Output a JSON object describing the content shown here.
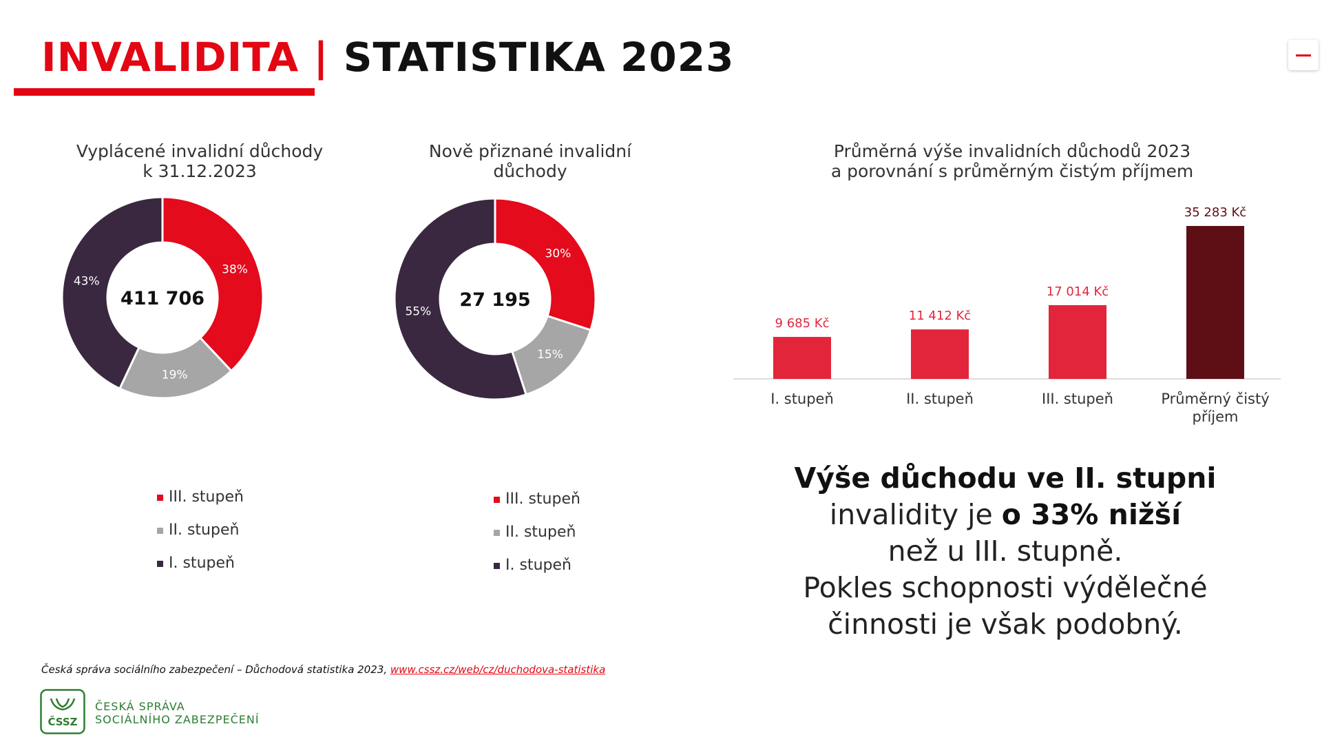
{
  "header": {
    "title_part1": "INVALIDITA",
    "title_separator": " | ",
    "title_part2": "STATISTIKA 2023"
  },
  "colors": {
    "accent_red": "#e30613",
    "slice_red": "#e30b1c",
    "slice_gray": "#a6a6a6",
    "slice_dark": "#3a2840",
    "bar_red": "#e3253b",
    "bar_dark": "#5e0f16"
  },
  "chart_data": [
    {
      "type": "pie",
      "title_line1": "Vyplácené invalidní důchody",
      "title_line2": "k 31.12.2023",
      "center_value": "411 706",
      "slices": [
        {
          "name": "III. stupeň",
          "value": 38,
          "label": "38%"
        },
        {
          "name": "II. stupeň",
          "value": 19,
          "label": "19%"
        },
        {
          "name": "I. stupeň",
          "value": 43,
          "label": "43%"
        }
      ],
      "legend": [
        "III. stupeň",
        "II. stupeň",
        "I. stupeň"
      ]
    },
    {
      "type": "pie",
      "title_line1": "Nově přiznané invalidní",
      "title_line2": "důchody",
      "center_value": "27 195",
      "slices": [
        {
          "name": "III. stupeň",
          "value": 30,
          "label": "30%"
        },
        {
          "name": "II. stupeň",
          "value": 15,
          "label": "15%"
        },
        {
          "name": "I. stupeň",
          "value": 55,
          "label": "55%"
        }
      ],
      "legend": [
        "III. stupeň",
        "II. stupeň",
        "I. stupeň"
      ]
    },
    {
      "type": "bar",
      "title_line1": "Průměrná výše invalidních důchodů 2023",
      "title_line2": "a porovnání s průměrným čistým příjmem",
      "categories": [
        {
          "line1": "I. stupeň",
          "line2": ""
        },
        {
          "line1": "II. stupeň",
          "line2": ""
        },
        {
          "line1": "III. stupeň",
          "line2": ""
        },
        {
          "line1": "Průměrný čistý",
          "line2": "příjem"
        }
      ],
      "values": [
        9685,
        11412,
        17014,
        35283
      ],
      "value_labels": [
        "9 685 Kč",
        "11 412 Kč",
        "17 014 Kč",
        "35 283 Kč"
      ],
      "ylim": [
        0,
        35283
      ]
    }
  ],
  "callout": {
    "line1": "Výše důchodu ve II. stupni",
    "line2_start": "invalidity je ",
    "line2_bold": "o 33% nižší",
    "line3": "než u III. stupně.",
    "line4": "Pokles schopnosti výdělečné",
    "line5": "činnosti je však podobný."
  },
  "footer": {
    "source_text": "Česká správa sociálního zabezpečení – Důchodová statistika 2023, ",
    "source_link": "www.cssz.cz/web/cz/duchodova-statistika",
    "logo_abbr": "ČSSZ",
    "logo_line1": "ČESKÁ SPRÁVA",
    "logo_line2": "SOCIÁLNÍHO ZABEZPEČENÍ"
  }
}
